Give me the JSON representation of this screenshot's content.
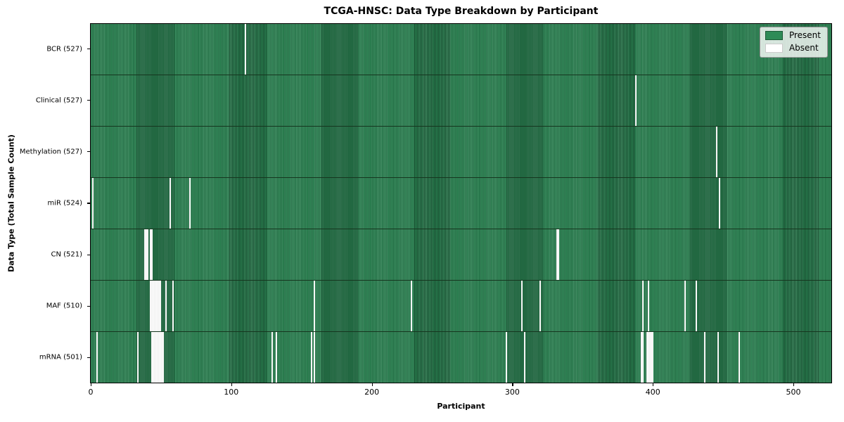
{
  "title": "TCGA-HNSC: Data Type Breakdown by Participant",
  "xlabel": "Participant",
  "ylabel": "Data Type (Total Sample Count)",
  "legend": {
    "present_label": "Present",
    "absent_label": "Absent"
  },
  "colors": {
    "present": "#2e8b57",
    "present_edge": "#1d5c38",
    "absent": "#ffffff",
    "row_divider": "#16361f",
    "plot_border": "#000000"
  },
  "chart_data": {
    "type": "heatmap",
    "title": "TCGA-HNSC: Data Type Breakdown by Participant",
    "xlabel": "Participant",
    "ylabel": "Data Type (Total Sample Count)",
    "legend_entries": [
      "Present",
      "Absent"
    ],
    "legend_position": "upper right",
    "n_participants": 528,
    "x_ticks": [
      0,
      100,
      200,
      300,
      400,
      500
    ],
    "xlim": [
      0,
      528
    ],
    "grid": false,
    "rows": [
      {
        "key": "bcr",
        "label": "BCR (527)",
        "data_type": "BCR",
        "present_count": 527,
        "absent_count": 1,
        "absent_participants": [
          110
        ]
      },
      {
        "key": "clinical",
        "label": "Clinical (527)",
        "data_type": "Clinical",
        "present_count": 527,
        "absent_count": 1,
        "absent_participants": [
          388
        ]
      },
      {
        "key": "methylation",
        "label": "Methylation (527)",
        "data_type": "Methylation",
        "present_count": 527,
        "absent_count": 1,
        "absent_participants": [
          446
        ]
      },
      {
        "key": "mir",
        "label": "miR (524)",
        "data_type": "miR",
        "present_count": 524,
        "absent_count": 4,
        "absent_participants": [
          1,
          56,
          70,
          448
        ]
      },
      {
        "key": "cn",
        "label": "CN (521)",
        "data_type": "CN",
        "present_count": 521,
        "absent_count": 7,
        "absent_participants": [
          38,
          39,
          40,
          42,
          43,
          332,
          333
        ]
      },
      {
        "key": "maf",
        "label": "MAF (510)",
        "data_type": "MAF",
        "present_count": 510,
        "absent_count": 18,
        "absent_participants": [
          42,
          43,
          44,
          45,
          46,
          47,
          48,
          49,
          53,
          58,
          159,
          228,
          307,
          320,
          393,
          397,
          423,
          431
        ]
      },
      {
        "key": "mrna",
        "label": "mRNA (501)",
        "data_type": "mRNA",
        "present_count": 501,
        "absent_count": 27,
        "absent_participants": [
          4,
          33,
          43,
          44,
          45,
          46,
          47,
          48,
          49,
          50,
          51,
          129,
          132,
          157,
          159,
          296,
          309,
          392,
          393,
          396,
          397,
          398,
          399,
          400,
          437,
          447,
          462
        ]
      }
    ]
  }
}
